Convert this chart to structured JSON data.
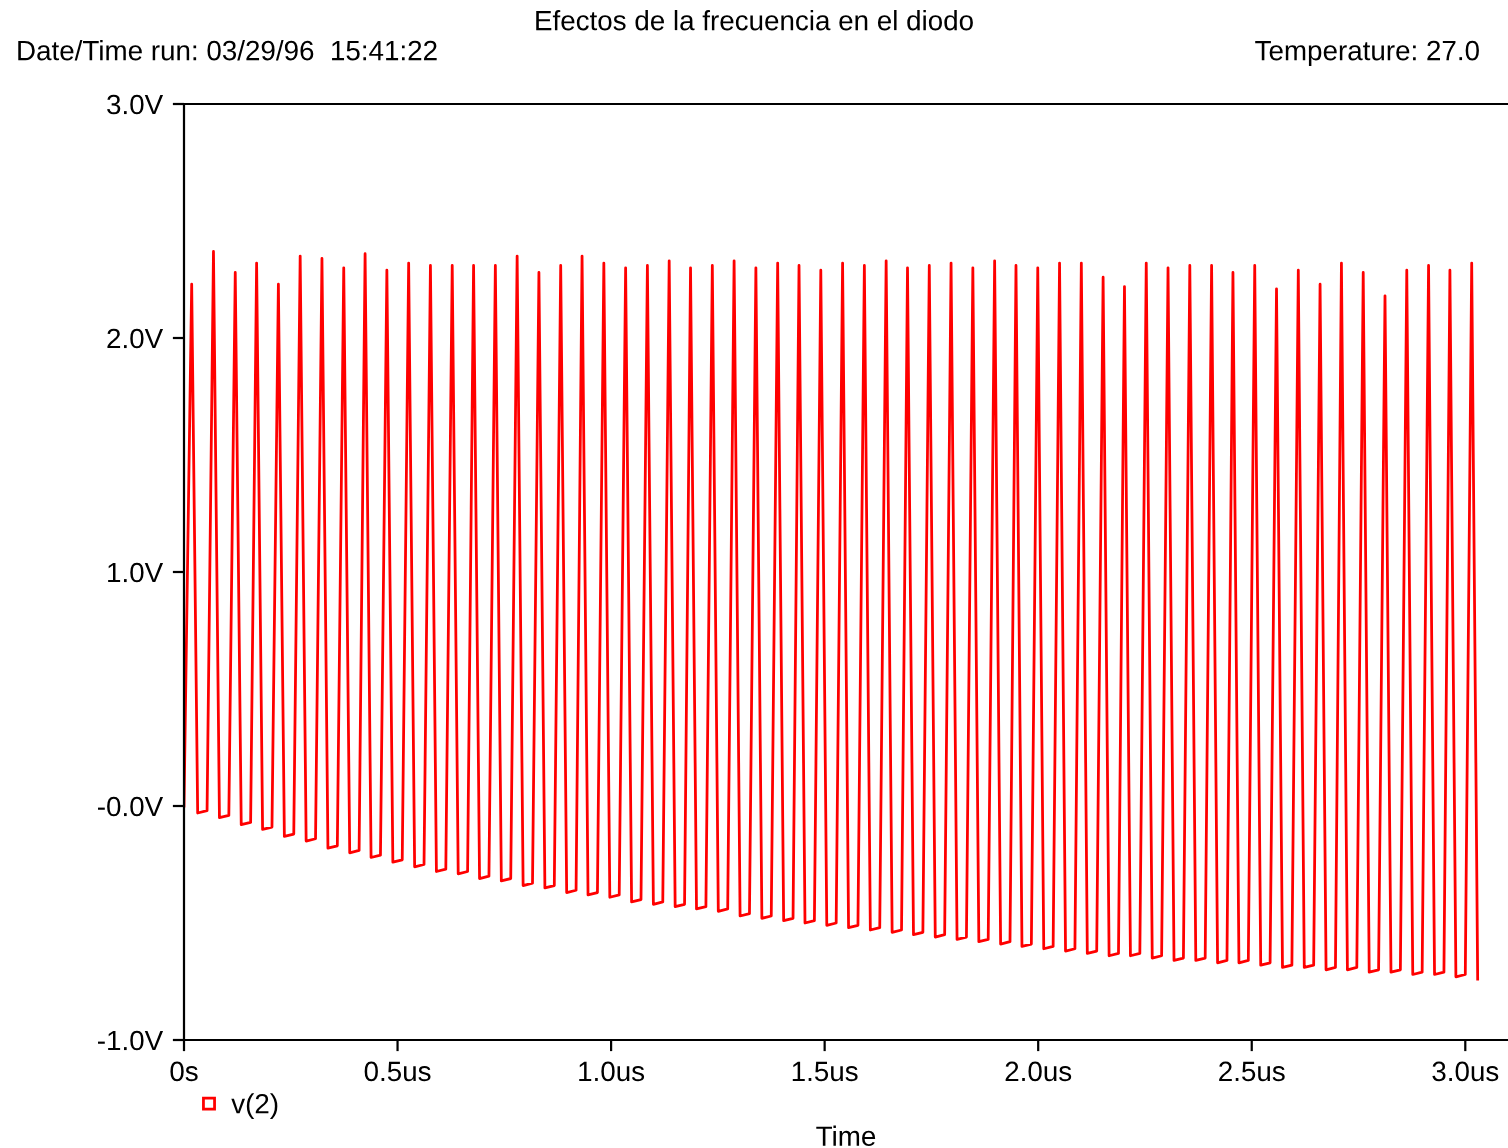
{
  "chart_data": {
    "type": "line",
    "title": "Efectos de la frecuencia en el diodo",
    "xlabel": "Time",
    "annotations": [
      "Date/Time run: 03/29/96  15:41:22",
      "Temperature: 27.0"
    ],
    "xlim": [
      0,
      3.1
    ],
    "ylim": [
      -1.0,
      3.0
    ],
    "xticks": [
      {
        "value": 0,
        "label": "0s"
      },
      {
        "value": 0.5,
        "label": "0.5us"
      },
      {
        "value": 1.0,
        "label": "1.0us"
      },
      {
        "value": 1.5,
        "label": "1.5us"
      },
      {
        "value": 2.0,
        "label": "2.0us"
      },
      {
        "value": 2.5,
        "label": "2.5us"
      },
      {
        "value": 3.0,
        "label": "3.0us"
      }
    ],
    "yticks": [
      {
        "value": -1.0,
        "label": "-1.0V"
      },
      {
        "value": 0.0,
        "label": "-0.0V"
      },
      {
        "value": 1.0,
        "label": "1.0V"
      },
      {
        "value": 2.0,
        "label": "2.0V"
      },
      {
        "value": 3.0,
        "label": "3.0V"
      }
    ],
    "grid": false,
    "legend": "bottom left",
    "series": [
      {
        "name": "v(2)",
        "color": "#ff0000",
        "x": [
          0,
          0.018,
          0.032,
          0.054,
          0.069,
          0.083,
          0.105,
          0.12,
          0.134,
          0.156,
          0.17,
          0.184,
          0.206,
          0.221,
          0.235,
          0.257,
          0.272,
          0.286,
          0.308,
          0.323,
          0.337,
          0.359,
          0.374,
          0.388,
          0.41,
          0.424,
          0.438,
          0.46,
          0.475,
          0.489,
          0.511,
          0.526,
          0.54,
          0.562,
          0.577,
          0.591,
          0.613,
          0.628,
          0.642,
          0.664,
          0.678,
          0.692,
          0.714,
          0.729,
          0.743,
          0.765,
          0.78,
          0.794,
          0.816,
          0.831,
          0.845,
          0.867,
          0.882,
          0.896,
          0.918,
          0.932,
          0.946,
          0.968,
          0.983,
          0.997,
          1.019,
          1.034,
          1.048,
          1.07,
          1.085,
          1.099,
          1.121,
          1.136,
          1.15,
          1.172,
          1.186,
          1.2,
          1.222,
          1.237,
          1.251,
          1.273,
          1.288,
          1.302,
          1.324,
          1.339,
          1.353,
          1.375,
          1.39,
          1.404,
          1.426,
          1.44,
          1.454,
          1.476,
          1.491,
          1.505,
          1.527,
          1.542,
          1.556,
          1.578,
          1.593,
          1.607,
          1.629,
          1.644,
          1.658,
          1.68,
          1.694,
          1.708,
          1.73,
          1.745,
          1.759,
          1.781,
          1.796,
          1.81,
          1.832,
          1.847,
          1.861,
          1.883,
          1.898,
          1.912,
          1.934,
          1.948,
          1.962,
          1.984,
          1.999,
          2.013,
          2.035,
          2.05,
          2.064,
          2.086,
          2.101,
          2.115,
          2.137,
          2.152,
          2.166,
          2.188,
          2.202,
          2.216,
          2.238,
          2.253,
          2.267,
          2.289,
          2.304,
          2.318,
          2.34,
          2.355,
          2.369,
          2.391,
          2.406,
          2.42,
          2.442,
          2.456,
          2.47,
          2.492,
          2.507,
          2.521,
          2.543,
          2.558,
          2.572,
          2.594,
          2.609,
          2.623,
          2.645,
          2.66,
          2.674,
          2.696,
          2.71,
          2.724,
          2.746,
          2.761,
          2.775,
          2.797,
          2.812,
          2.826,
          2.848,
          2.863,
          2.877,
          2.899,
          2.914,
          2.928,
          2.95,
          2.964,
          2.978,
          3.0,
          3.015,
          3.029
        ],
        "values": [
          0,
          2.23,
          -0.03,
          -0.02,
          2.37,
          -0.05,
          -0.04,
          2.28,
          -0.08,
          -0.07,
          2.32,
          -0.1,
          -0.09,
          2.23,
          -0.13,
          -0.12,
          2.35,
          -0.15,
          -0.14,
          2.34,
          -0.18,
          -0.17,
          2.3,
          -0.2,
          -0.19,
          2.36,
          -0.22,
          -0.21,
          2.29,
          -0.24,
          -0.23,
          2.32,
          -0.26,
          -0.25,
          2.31,
          -0.28,
          -0.27,
          2.31,
          -0.29,
          -0.28,
          2.31,
          -0.31,
          -0.3,
          2.31,
          -0.32,
          -0.31,
          2.35,
          -0.34,
          -0.33,
          2.28,
          -0.35,
          -0.34,
          2.31,
          -0.37,
          -0.36,
          2.35,
          -0.38,
          -0.37,
          2.32,
          -0.39,
          -0.38,
          2.3,
          -0.41,
          -0.4,
          2.31,
          -0.42,
          -0.41,
          2.33,
          -0.43,
          -0.42,
          2.3,
          -0.44,
          -0.43,
          2.31,
          -0.45,
          -0.44,
          2.33,
          -0.47,
          -0.46,
          2.3,
          -0.48,
          -0.47,
          2.32,
          -0.49,
          -0.48,
          2.31,
          -0.5,
          -0.49,
          2.29,
          -0.51,
          -0.5,
          2.32,
          -0.52,
          -0.51,
          2.31,
          -0.53,
          -0.52,
          2.33,
          -0.54,
          -0.53,
          2.3,
          -0.55,
          -0.54,
          2.31,
          -0.56,
          -0.55,
          2.32,
          -0.57,
          -0.56,
          2.3,
          -0.58,
          -0.57,
          2.33,
          -0.59,
          -0.58,
          2.31,
          -0.6,
          -0.59,
          2.3,
          -0.61,
          -0.6,
          2.32,
          -0.62,
          -0.61,
          2.32,
          -0.63,
          -0.62,
          2.26,
          -0.64,
          -0.63,
          2.22,
          -0.64,
          -0.63,
          2.32,
          -0.65,
          -0.64,
          2.3,
          -0.66,
          -0.65,
          2.31,
          -0.66,
          -0.65,
          2.31,
          -0.67,
          -0.66,
          2.28,
          -0.67,
          -0.66,
          2.31,
          -0.68,
          -0.67,
          2.21,
          -0.69,
          -0.68,
          2.29,
          -0.69,
          -0.68,
          2.23,
          -0.7,
          -0.69,
          2.32,
          -0.7,
          -0.69,
          2.28,
          -0.71,
          -0.7,
          2.18,
          -0.71,
          -0.7,
          2.29,
          -0.72,
          -0.71,
          2.31,
          -0.72,
          -0.71,
          2.29,
          -0.73,
          -0.72,
          2.32,
          -0.74
        ]
      }
    ]
  }
}
